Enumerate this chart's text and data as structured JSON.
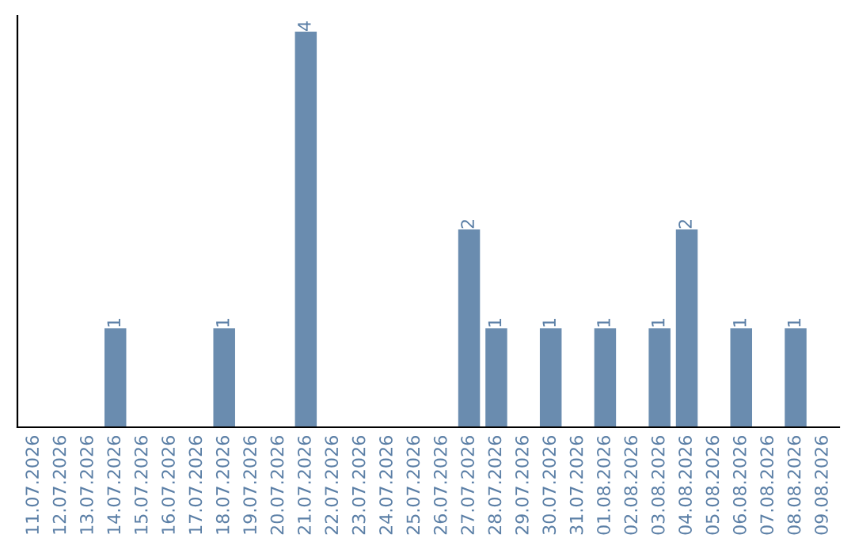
{
  "chart_data": {
    "type": "bar",
    "categories": [
      "11.07.2026",
      "12.07.2026",
      "13.07.2026",
      "14.07.2026",
      "15.07.2026",
      "16.07.2026",
      "17.07.2026",
      "18.07.2026",
      "19.07.2026",
      "20.07.2026",
      "21.07.2026",
      "22.07.2026",
      "23.07.2026",
      "24.07.2026",
      "25.07.2026",
      "26.07.2026",
      "27.07.2026",
      "28.07.2026",
      "29.07.2026",
      "30.07.2026",
      "31.07.2026",
      "01.08.2026",
      "02.08.2026",
      "03.08.2026",
      "04.08.2026",
      "05.08.2026",
      "06.08.2026",
      "07.08.2026",
      "08.08.2026",
      "09.08.2026"
    ],
    "values": [
      0,
      0,
      0,
      1,
      0,
      0,
      0,
      1,
      0,
      0,
      4,
      0,
      0,
      0,
      0,
      0,
      2,
      1,
      0,
      1,
      0,
      1,
      0,
      1,
      2,
      0,
      1,
      0,
      1,
      0
    ],
    "value_labels": [
      null,
      null,
      null,
      "1",
      null,
      null,
      null,
      "1",
      null,
      null,
      "4",
      null,
      null,
      null,
      null,
      null,
      "2",
      "1",
      null,
      "1",
      null,
      "1",
      null,
      "1",
      "2",
      null,
      "1",
      null,
      "1",
      null
    ],
    "color": "#6a8caf",
    "grid": false,
    "legend": false
  }
}
